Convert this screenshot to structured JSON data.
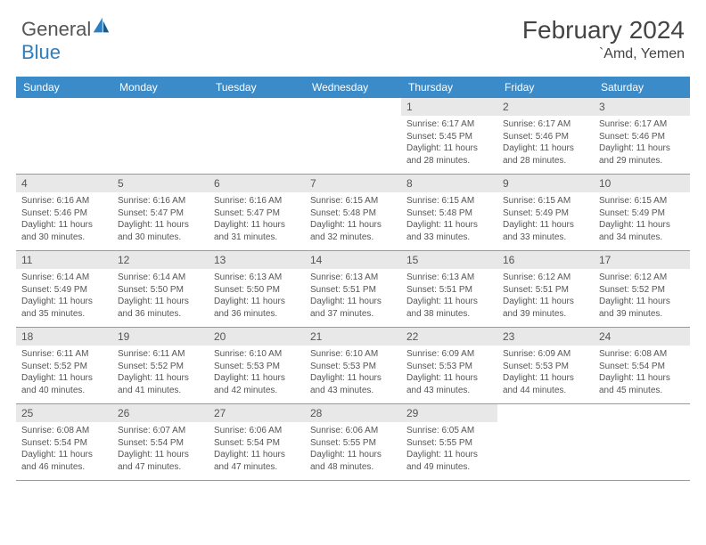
{
  "logo": {
    "text1": "General",
    "text2": "Blue"
  },
  "title": "February 2024",
  "location": "`Amd, Yemen",
  "header_bg": "#3b8bc9",
  "daynum_bg": "#e8e8e8",
  "dow": [
    "Sunday",
    "Monday",
    "Tuesday",
    "Wednesday",
    "Thursday",
    "Friday",
    "Saturday"
  ],
  "weeks": [
    [
      null,
      null,
      null,
      null,
      {
        "n": "1",
        "sr": "6:17 AM",
        "ss": "5:45 PM",
        "dl": "11 hours and 28 minutes."
      },
      {
        "n": "2",
        "sr": "6:17 AM",
        "ss": "5:46 PM",
        "dl": "11 hours and 28 minutes."
      },
      {
        "n": "3",
        "sr": "6:17 AM",
        "ss": "5:46 PM",
        "dl": "11 hours and 29 minutes."
      }
    ],
    [
      {
        "n": "4",
        "sr": "6:16 AM",
        "ss": "5:46 PM",
        "dl": "11 hours and 30 minutes."
      },
      {
        "n": "5",
        "sr": "6:16 AM",
        "ss": "5:47 PM",
        "dl": "11 hours and 30 minutes."
      },
      {
        "n": "6",
        "sr": "6:16 AM",
        "ss": "5:47 PM",
        "dl": "11 hours and 31 minutes."
      },
      {
        "n": "7",
        "sr": "6:15 AM",
        "ss": "5:48 PM",
        "dl": "11 hours and 32 minutes."
      },
      {
        "n": "8",
        "sr": "6:15 AM",
        "ss": "5:48 PM",
        "dl": "11 hours and 33 minutes."
      },
      {
        "n": "9",
        "sr": "6:15 AM",
        "ss": "5:49 PM",
        "dl": "11 hours and 33 minutes."
      },
      {
        "n": "10",
        "sr": "6:15 AM",
        "ss": "5:49 PM",
        "dl": "11 hours and 34 minutes."
      }
    ],
    [
      {
        "n": "11",
        "sr": "6:14 AM",
        "ss": "5:49 PM",
        "dl": "11 hours and 35 minutes."
      },
      {
        "n": "12",
        "sr": "6:14 AM",
        "ss": "5:50 PM",
        "dl": "11 hours and 36 minutes."
      },
      {
        "n": "13",
        "sr": "6:13 AM",
        "ss": "5:50 PM",
        "dl": "11 hours and 36 minutes."
      },
      {
        "n": "14",
        "sr": "6:13 AM",
        "ss": "5:51 PM",
        "dl": "11 hours and 37 minutes."
      },
      {
        "n": "15",
        "sr": "6:13 AM",
        "ss": "5:51 PM",
        "dl": "11 hours and 38 minutes."
      },
      {
        "n": "16",
        "sr": "6:12 AM",
        "ss": "5:51 PM",
        "dl": "11 hours and 39 minutes."
      },
      {
        "n": "17",
        "sr": "6:12 AM",
        "ss": "5:52 PM",
        "dl": "11 hours and 39 minutes."
      }
    ],
    [
      {
        "n": "18",
        "sr": "6:11 AM",
        "ss": "5:52 PM",
        "dl": "11 hours and 40 minutes."
      },
      {
        "n": "19",
        "sr": "6:11 AM",
        "ss": "5:52 PM",
        "dl": "11 hours and 41 minutes."
      },
      {
        "n": "20",
        "sr": "6:10 AM",
        "ss": "5:53 PM",
        "dl": "11 hours and 42 minutes."
      },
      {
        "n": "21",
        "sr": "6:10 AM",
        "ss": "5:53 PM",
        "dl": "11 hours and 43 minutes."
      },
      {
        "n": "22",
        "sr": "6:09 AM",
        "ss": "5:53 PM",
        "dl": "11 hours and 43 minutes."
      },
      {
        "n": "23",
        "sr": "6:09 AM",
        "ss": "5:53 PM",
        "dl": "11 hours and 44 minutes."
      },
      {
        "n": "24",
        "sr": "6:08 AM",
        "ss": "5:54 PM",
        "dl": "11 hours and 45 minutes."
      }
    ],
    [
      {
        "n": "25",
        "sr": "6:08 AM",
        "ss": "5:54 PM",
        "dl": "11 hours and 46 minutes."
      },
      {
        "n": "26",
        "sr": "6:07 AM",
        "ss": "5:54 PM",
        "dl": "11 hours and 47 minutes."
      },
      {
        "n": "27",
        "sr": "6:06 AM",
        "ss": "5:54 PM",
        "dl": "11 hours and 47 minutes."
      },
      {
        "n": "28",
        "sr": "6:06 AM",
        "ss": "5:55 PM",
        "dl": "11 hours and 48 minutes."
      },
      {
        "n": "29",
        "sr": "6:05 AM",
        "ss": "5:55 PM",
        "dl": "11 hours and 49 minutes."
      },
      null,
      null
    ]
  ],
  "labels": {
    "sunrise": "Sunrise: ",
    "sunset": "Sunset: ",
    "daylight": "Daylight: "
  }
}
